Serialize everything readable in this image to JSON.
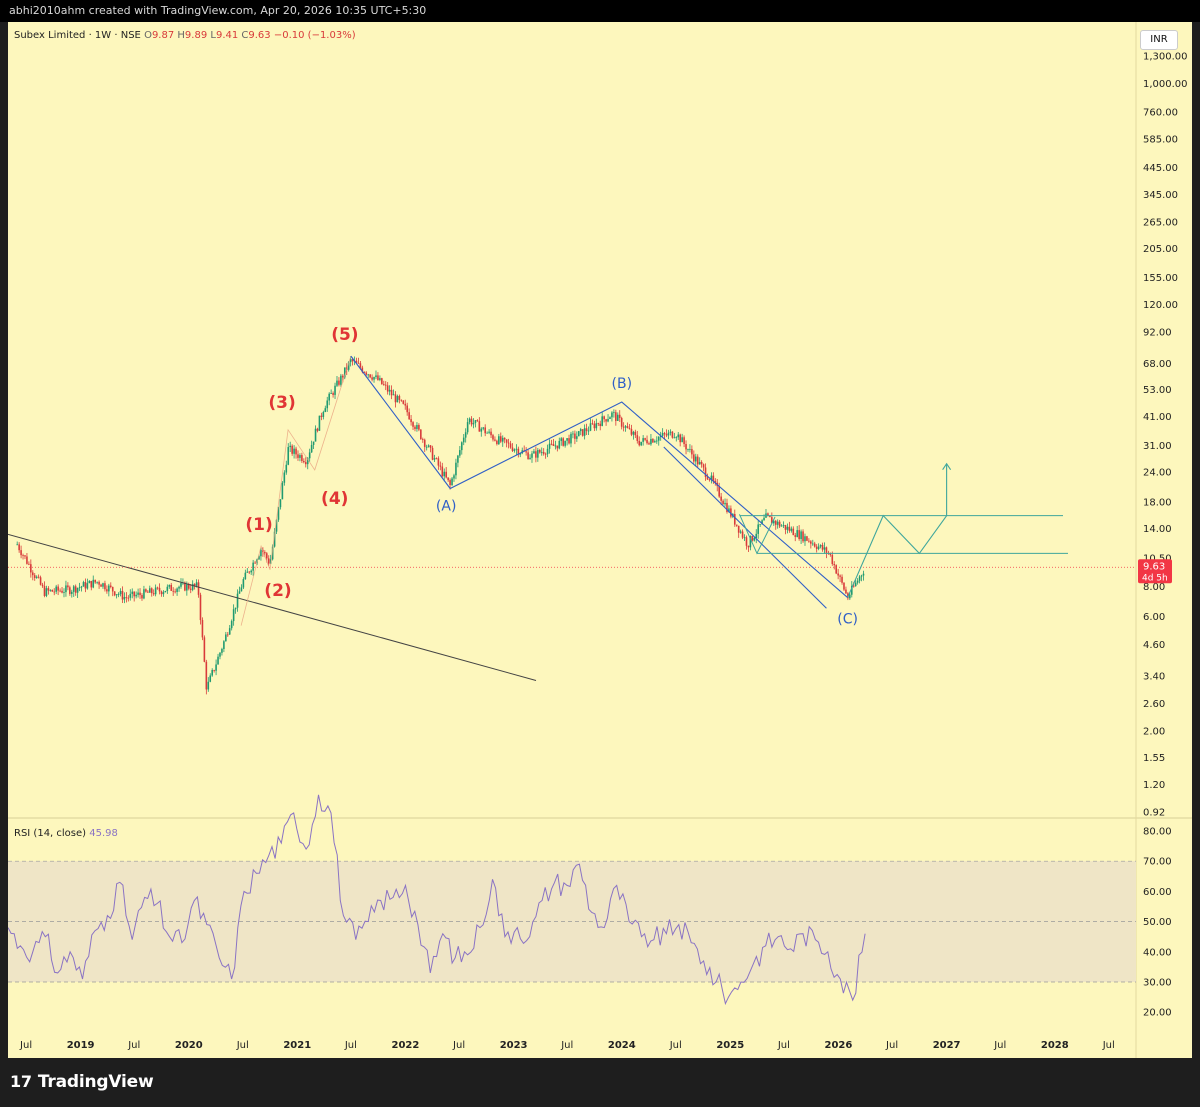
{
  "topbar": {
    "text": "abhi2010ahm created with TradingView.com, Apr 20, 2026 10:35 UTC+5:30"
  },
  "legend": {
    "symbol": "Subex Limited · 1W · NSE",
    "o_label": "O",
    "o": "9.87",
    "h_label": "H",
    "h": "9.89",
    "l_label": "L",
    "l": "9.41",
    "c_label": "C",
    "c": "9.63",
    "change": "−0.10 (−1.03%)"
  },
  "currency_button": "INR",
  "price_axis_ticks": [
    "1,300.00",
    "1,000.00",
    "760.00",
    "585.00",
    "445.00",
    "345.00",
    "265.00",
    "205.00",
    "155.00",
    "120.00",
    "92.00",
    "68.00",
    "53.00",
    "41.00",
    "31.00",
    "24.00",
    "18.00",
    "14.00",
    "10.50",
    "8.00",
    "6.00",
    "4.60",
    "3.40",
    "2.60",
    "2.00",
    "1.55",
    "1.20",
    "0.92"
  ],
  "last_price": {
    "value": "9.63",
    "countdown": "4d 5h",
    "color": "#f23645"
  },
  "time_axis": {
    "labels": [
      "Jul",
      "2019",
      "Jul",
      "2020",
      "Jul",
      "2021",
      "Jul",
      "2022",
      "Jul",
      "2023",
      "Jul",
      "2024",
      "Jul",
      "2025",
      "Jul",
      "2026",
      "Jul",
      "2027",
      "Jul",
      "2028",
      "Jul"
    ],
    "bold": [
      "2019",
      "2020",
      "2021",
      "2022",
      "2023",
      "2024",
      "2025",
      "2026",
      "2027",
      "2028"
    ]
  },
  "rsi": {
    "label": "RSI (14, close)",
    "value": "45.98",
    "ticks": [
      "80.00",
      "70.00",
      "60.00",
      "50.00",
      "40.00",
      "30.00",
      "20.00"
    ],
    "line_color": "#8a73c4",
    "band_color": "#efe5c6"
  },
  "wave_labels": {
    "impulse": [
      "(1)",
      "(2)",
      "(3)",
      "(4)",
      "(5)"
    ],
    "correction": [
      "(A)",
      "(B)",
      "(C)"
    ],
    "impulse_color": "#e03535",
    "correction_color": "#2f5fc7"
  },
  "colors": {
    "background": "#fdf7bd",
    "up_candle": "#1f9a70",
    "down_candle": "#d83a3a",
    "projection": "#3fa69c",
    "channel": "#2f5fc7"
  },
  "chart_data": {
    "type": "candlestick",
    "symbol": "Subex Limited",
    "interval": "1W",
    "exchange": "NSE",
    "y_scale": "log",
    "ylim": [
      0.92,
      1300
    ],
    "x_range": [
      "2018-05",
      "2028-10"
    ],
    "approx_close_path": [
      {
        "date": "2018-06",
        "close": 12.0
      },
      {
        "date": "2018-09",
        "close": 7.6
      },
      {
        "date": "2018-12",
        "close": 7.8
      },
      {
        "date": "2019-03",
        "close": 8.4
      },
      {
        "date": "2019-06",
        "close": 7.2
      },
      {
        "date": "2019-09",
        "close": 7.6
      },
      {
        "date": "2019-12",
        "close": 8.0
      },
      {
        "date": "2020-02",
        "close": 8.0
      },
      {
        "date": "2020-03",
        "close": 3.0
      },
      {
        "date": "2020-05",
        "close": 4.8
      },
      {
        "date": "2020-07",
        "close": 8.4
      },
      {
        "date": "2020-09",
        "close": 11.5
      },
      {
        "date": "2020-10",
        "close": 10.0
      },
      {
        "date": "2020-12",
        "close": 30.0
      },
      {
        "date": "2021-02",
        "close": 27.0
      },
      {
        "date": "2021-04",
        "close": 45.0
      },
      {
        "date": "2021-06",
        "close": 60.0
      },
      {
        "date": "2021-07",
        "close": 70.0
      },
      {
        "date": "2021-10",
        "close": 58.0
      },
      {
        "date": "2022-01",
        "close": 44.0
      },
      {
        "date": "2022-06",
        "close": 21.0
      },
      {
        "date": "2022-08",
        "close": 40.0
      },
      {
        "date": "2022-11",
        "close": 33.0
      },
      {
        "date": "2023-03",
        "close": 28.0
      },
      {
        "date": "2023-08",
        "close": 34.0
      },
      {
        "date": "2023-12",
        "close": 42.0
      },
      {
        "date": "2024-03",
        "close": 32.0
      },
      {
        "date": "2024-07",
        "close": 35.0
      },
      {
        "date": "2024-11",
        "close": 22.0
      },
      {
        "date": "2025-03",
        "close": 12.0
      },
      {
        "date": "2025-05",
        "close": 15.5
      },
      {
        "date": "2025-09",
        "close": 13.0
      },
      {
        "date": "2025-12",
        "close": 11.0
      },
      {
        "date": "2026-02",
        "close": 7.2
      },
      {
        "date": "2026-04",
        "close": 9.63
      }
    ],
    "wave_points": [
      {
        "label": "(1)",
        "date": "2020-09",
        "price": 11.8
      },
      {
        "label": "(2)",
        "date": "2020-10",
        "price": 9.4
      },
      {
        "label": "(3)",
        "date": "2020-12",
        "price": 36.0
      },
      {
        "label": "(4)",
        "date": "2021-03",
        "price": 24.5
      },
      {
        "label": "(5)",
        "date": "2021-07",
        "price": 73.0
      },
      {
        "label": "(A)",
        "date": "2022-06",
        "price": 20.5
      },
      {
        "label": "(B)",
        "date": "2024-01",
        "price": 47.0
      },
      {
        "label": "(C)",
        "date": "2026-02",
        "price": 7.2
      }
    ],
    "horizontal_levels": [
      15.8,
      11.0
    ],
    "projection_path": [
      {
        "date": "2026-02",
        "price": 7.2
      },
      {
        "date": "2026-06",
        "price": 15.8
      },
      {
        "date": "2026-10",
        "price": 11.0
      },
      {
        "date": "2027-01",
        "price": 15.8
      },
      {
        "date": "2027-01",
        "price": 26.0
      }
    ],
    "rsi": {
      "period": 14,
      "current": 45.98,
      "ylim": [
        20,
        80
      ],
      "overbought": 70,
      "middle": 50,
      "oversold": 30,
      "series": [
        48,
        42,
        40,
        45,
        33,
        40,
        31,
        47,
        52,
        63,
        44,
        58,
        56,
        45,
        43,
        57,
        49,
        38,
        31,
        60,
        66,
        72,
        76,
        86,
        74,
        92,
        86,
        52,
        44,
        50,
        57,
        58,
        62,
        49,
        33,
        46,
        38,
        39,
        48,
        64,
        45,
        48,
        45,
        57,
        63,
        62,
        69,
        53,
        48,
        62,
        50,
        45,
        44,
        46,
        49,
        43,
        37,
        30,
        25,
        30,
        36,
        42,
        45,
        41,
        46,
        44,
        40,
        31,
        24,
        46
      ]
    }
  }
}
